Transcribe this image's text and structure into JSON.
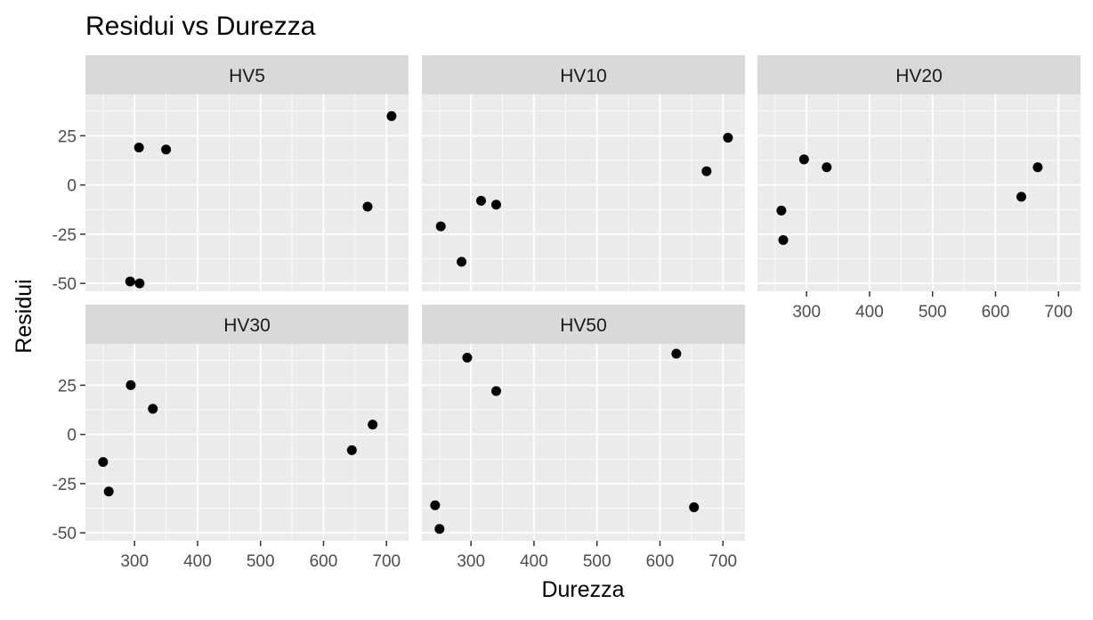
{
  "chart_data": {
    "type": "scatter",
    "title": "Residui vs Durezza",
    "xlabel": "Durezza",
    "ylabel": "Residui",
    "xlim": [
      222,
      735
    ],
    "ylim": [
      -54,
      46
    ],
    "x_ticks": [
      300,
      400,
      500,
      600,
      700
    ],
    "y_ticks": [
      -50,
      -25,
      0,
      25
    ],
    "grid": true,
    "legend": "none",
    "colors": {
      "panel_bg": "#ebebeb",
      "strip_bg": "#d9d9d9",
      "grid": "#ffffff",
      "point": "#000000",
      "text": "#000000",
      "tick_text": "#4d4d4d",
      "tick_mark": "#333333"
    },
    "panels": [
      {
        "label": "HV5",
        "points": [
          [
            293,
            -49
          ],
          [
            307,
            19
          ],
          [
            308,
            -50
          ],
          [
            350,
            18
          ],
          [
            670,
            -11
          ],
          [
            708,
            35
          ]
        ]
      },
      {
        "label": "HV10",
        "points": [
          [
            252,
            -21
          ],
          [
            285,
            -39
          ],
          [
            316,
            -8
          ],
          [
            340,
            -10
          ],
          [
            674,
            7
          ],
          [
            708,
            24
          ]
        ]
      },
      {
        "label": "HV20",
        "points": [
          [
            260,
            -13
          ],
          [
            263,
            -28
          ],
          [
            296,
            13
          ],
          [
            332,
            9
          ],
          [
            641,
            -6
          ],
          [
            667,
            9
          ]
        ]
      },
      {
        "label": "HV30",
        "points": [
          [
            250,
            -14
          ],
          [
            259,
            -29
          ],
          [
            294,
            25
          ],
          [
            329,
            13
          ],
          [
            645,
            -8
          ],
          [
            678,
            5
          ]
        ]
      },
      {
        "label": "HV50",
        "points": [
          [
            243,
            -36
          ],
          [
            250,
            -48
          ],
          [
            294,
            39
          ],
          [
            340,
            22
          ],
          [
            626,
            41
          ],
          [
            654,
            -37
          ]
        ]
      }
    ]
  }
}
